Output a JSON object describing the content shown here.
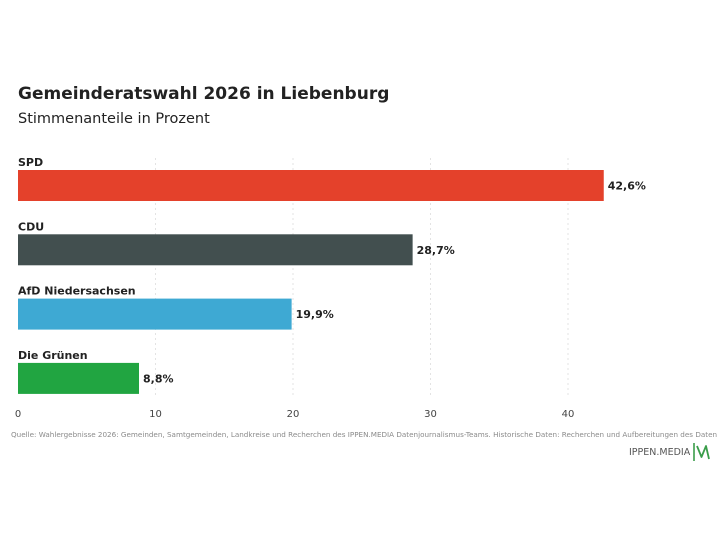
{
  "header": {
    "title": "Gemeinderatswahl 2026 in Liebenburg",
    "subtitle": "Stimmenanteile in Prozent"
  },
  "footer": {
    "source": "Quelle: Wahlergebnisse 2026: Gemeinden, Samtgemeinden, Landkreise und Recherchen des IPPEN.MEDIA Datenjournalismus-Teams. Historische Daten: Recherchen und Aufbereitungen des Daten",
    "logo_text": "IPPEN.MEDIA",
    "logo_mark_color": "#3a9d4a"
  },
  "chart_data": {
    "type": "bar",
    "orientation": "horizontal",
    "title": "Gemeinderatswahl 2026 in Liebenburg",
    "subtitle": "Stimmenanteile in Prozent",
    "categories": [
      "SPD",
      "CDU",
      "AfD Niedersachsen",
      "Die Grünen"
    ],
    "values": [
      42.6,
      28.7,
      19.9,
      8.8
    ],
    "value_labels": [
      "42,6%",
      "28,7%",
      "19,9%",
      "8,8%"
    ],
    "colors": [
      "#e4412b",
      "#424f4f",
      "#3ea9d3",
      "#21a541"
    ],
    "xlim": [
      0,
      45
    ],
    "xticks": [
      0,
      10,
      20,
      30,
      40
    ],
    "xtick_labels": [
      "0",
      "10",
      "20",
      "30",
      "40"
    ],
    "grid": "vertical dashed",
    "xlabel": "",
    "ylabel": ""
  }
}
